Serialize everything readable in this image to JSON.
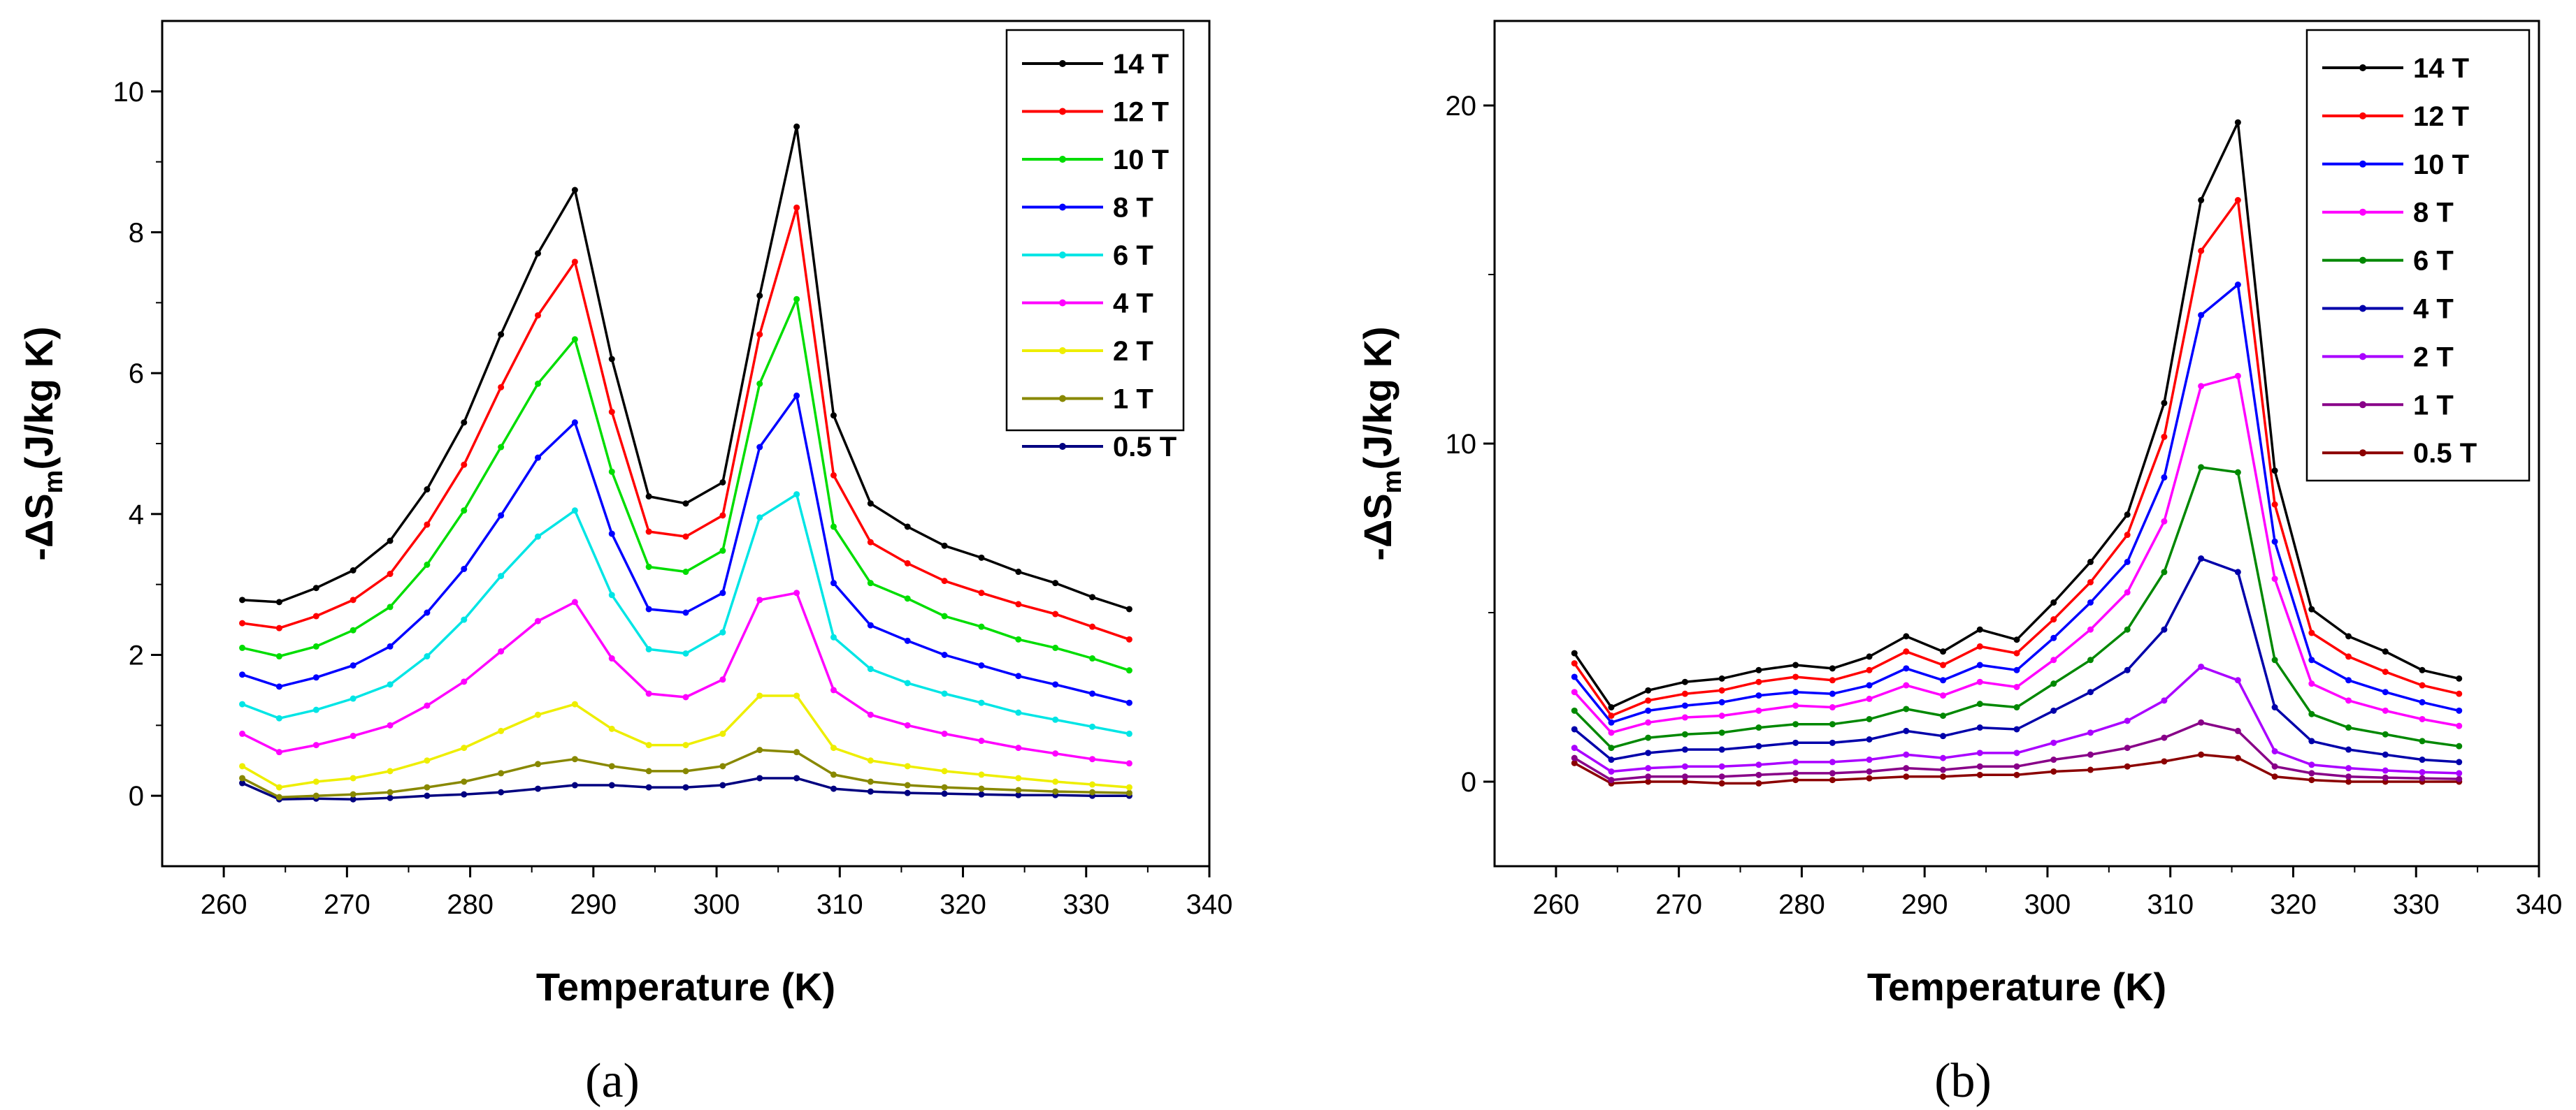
{
  "chart_data": [
    {
      "type": "line",
      "panel_label": "(a)",
      "xlabel": "Temperature (K)",
      "ylabel": "-ΔS",
      "ylabel_sub": "m",
      "ylabel_unit": "(J/kg K)",
      "xlim": [
        255,
        340
      ],
      "ylim": [
        -1,
        11
      ],
      "xticks": [
        260,
        270,
        280,
        290,
        300,
        310,
        320,
        330,
        340
      ],
      "yticks": [
        0,
        2,
        4,
        6,
        8,
        10
      ],
      "legend_position": "top-right",
      "x": [
        261.5,
        264.5,
        267.5,
        270.5,
        273.5,
        276.5,
        279.5,
        282.5,
        285.5,
        288.5,
        291.5,
        294.5,
        297.5,
        300.5,
        303.5,
        306.5,
        309.5,
        312.5,
        315.5,
        318.5,
        321.5,
        324.5,
        327.5,
        330.5,
        333.5
      ],
      "series": [
        {
          "name": "14 T",
          "color": "#000000",
          "values": [
            2.78,
            2.75,
            2.95,
            3.2,
            3.62,
            4.35,
            5.3,
            6.55,
            7.7,
            8.6,
            6.2,
            4.25,
            4.15,
            4.45,
            7.1,
            9.5,
            5.4,
            4.15,
            3.82,
            3.55,
            3.38,
            3.18,
            3.02,
            2.82,
            2.65
          ]
        },
        {
          "name": "12 T",
          "color": "#ff0000",
          "values": [
            2.45,
            2.38,
            2.55,
            2.78,
            3.15,
            3.85,
            4.7,
            5.8,
            6.82,
            7.58,
            5.45,
            3.75,
            3.68,
            3.98,
            6.55,
            8.35,
            4.55,
            3.6,
            3.3,
            3.05,
            2.88,
            2.72,
            2.58,
            2.4,
            2.22
          ]
        },
        {
          "name": "10 T",
          "color": "#00dd00",
          "values": [
            2.1,
            1.98,
            2.12,
            2.35,
            2.68,
            3.28,
            4.05,
            4.95,
            5.85,
            6.48,
            4.6,
            3.25,
            3.18,
            3.48,
            5.85,
            7.05,
            3.82,
            3.02,
            2.8,
            2.55,
            2.4,
            2.22,
            2.1,
            1.95,
            1.78
          ]
        },
        {
          "name": "8 T",
          "color": "#0000ff",
          "values": [
            1.72,
            1.55,
            1.68,
            1.85,
            2.12,
            2.6,
            3.22,
            3.98,
            4.8,
            5.3,
            3.72,
            2.65,
            2.6,
            2.88,
            4.95,
            5.68,
            3.02,
            2.42,
            2.2,
            2.0,
            1.85,
            1.7,
            1.58,
            1.45,
            1.32
          ]
        },
        {
          "name": "6 T",
          "color": "#00e5e5",
          "values": [
            1.3,
            1.1,
            1.22,
            1.38,
            1.58,
            1.98,
            2.5,
            3.12,
            3.68,
            4.05,
            2.85,
            2.08,
            2.02,
            2.32,
            3.95,
            4.28,
            2.25,
            1.8,
            1.6,
            1.45,
            1.32,
            1.18,
            1.08,
            0.98,
            0.88
          ]
        },
        {
          "name": "4 T",
          "color": "#ff00ff",
          "values": [
            0.88,
            0.62,
            0.72,
            0.85,
            1.0,
            1.28,
            1.62,
            2.05,
            2.48,
            2.75,
            1.95,
            1.45,
            1.4,
            1.65,
            2.78,
            2.88,
            1.5,
            1.15,
            1.0,
            0.88,
            0.78,
            0.68,
            0.6,
            0.52,
            0.46
          ]
        },
        {
          "name": "2 T",
          "color": "#eeee00",
          "values": [
            0.42,
            0.12,
            0.2,
            0.25,
            0.35,
            0.5,
            0.68,
            0.92,
            1.15,
            1.3,
            0.95,
            0.72,
            0.72,
            0.88,
            1.42,
            1.42,
            0.68,
            0.5,
            0.42,
            0.35,
            0.3,
            0.25,
            0.2,
            0.16,
            0.12
          ]
        },
        {
          "name": "1 T",
          "color": "#888800",
          "values": [
            0.25,
            -0.02,
            0.0,
            0.02,
            0.05,
            0.12,
            0.2,
            0.32,
            0.45,
            0.52,
            0.42,
            0.35,
            0.35,
            0.42,
            0.65,
            0.62,
            0.3,
            0.2,
            0.15,
            0.12,
            0.1,
            0.08,
            0.06,
            0.05,
            0.04
          ]
        },
        {
          "name": "0.5 T",
          "color": "#000080",
          "values": [
            0.18,
            -0.05,
            -0.04,
            -0.05,
            -0.03,
            0.0,
            0.02,
            0.05,
            0.1,
            0.15,
            0.15,
            0.12,
            0.12,
            0.15,
            0.25,
            0.25,
            0.1,
            0.06,
            0.04,
            0.03,
            0.02,
            0.01,
            0.01,
            0.0,
            0.0
          ]
        }
      ]
    },
    {
      "type": "line",
      "panel_label": "(b)",
      "xlabel": "Temperature (K)",
      "ylabel": "-ΔS",
      "ylabel_sub": "m",
      "ylabel_unit": "(J/kg K)",
      "xlim": [
        255,
        340
      ],
      "ylim": [
        -2.5,
        22.5
      ],
      "xticks": [
        260,
        270,
        280,
        290,
        300,
        310,
        320,
        330,
        340
      ],
      "yticks": [
        0,
        10,
        20
      ],
      "legend_position": "top-right",
      "x": [
        261.5,
        264.5,
        267.5,
        270.5,
        273.5,
        276.5,
        279.5,
        282.5,
        285.5,
        288.5,
        291.5,
        294.5,
        297.5,
        300.5,
        303.5,
        306.5,
        309.5,
        312.5,
        315.5,
        318.5,
        321.5,
        324.5,
        327.5,
        330.5,
        333.5
      ],
      "series": [
        {
          "name": "14 T",
          "color": "#000000",
          "values": [
            3.8,
            2.2,
            2.7,
            2.95,
            3.05,
            3.3,
            3.45,
            3.35,
            3.7,
            4.3,
            3.85,
            4.5,
            4.2,
            5.3,
            6.5,
            7.9,
            11.2,
            17.2,
            19.5,
            9.2,
            5.1,
            4.3,
            3.85,
            3.3,
            3.05
          ]
        },
        {
          "name": "12 T",
          "color": "#ff0000",
          "values": [
            3.5,
            1.95,
            2.4,
            2.6,
            2.7,
            2.95,
            3.1,
            3.0,
            3.3,
            3.85,
            3.45,
            4.0,
            3.8,
            4.8,
            5.9,
            7.3,
            10.2,
            15.7,
            17.2,
            8.2,
            4.4,
            3.7,
            3.25,
            2.85,
            2.6
          ]
        },
        {
          "name": "10 T",
          "color": "#0000ff",
          "values": [
            3.1,
            1.75,
            2.1,
            2.25,
            2.35,
            2.55,
            2.65,
            2.6,
            2.85,
            3.35,
            3.0,
            3.45,
            3.3,
            4.25,
            5.3,
            6.5,
            9.0,
            13.8,
            14.7,
            7.1,
            3.6,
            3.0,
            2.65,
            2.35,
            2.1
          ]
        },
        {
          "name": "8 T",
          "color": "#ff00ff",
          "values": [
            2.65,
            1.45,
            1.75,
            1.9,
            1.95,
            2.1,
            2.25,
            2.2,
            2.45,
            2.85,
            2.55,
            2.95,
            2.8,
            3.6,
            4.5,
            5.6,
            7.7,
            11.7,
            12.0,
            6.0,
            2.9,
            2.4,
            2.1,
            1.85,
            1.65
          ]
        },
        {
          "name": "6 T",
          "color": "#008800",
          "values": [
            2.1,
            1.0,
            1.3,
            1.4,
            1.45,
            1.6,
            1.7,
            1.7,
            1.85,
            2.15,
            1.95,
            2.3,
            2.2,
            2.9,
            3.6,
            4.5,
            6.2,
            9.3,
            9.15,
            3.6,
            2.0,
            1.6,
            1.4,
            1.2,
            1.05
          ]
        },
        {
          "name": "4 T",
          "color": "#0000aa",
          "values": [
            1.55,
            0.65,
            0.85,
            0.95,
            0.95,
            1.05,
            1.15,
            1.15,
            1.25,
            1.5,
            1.35,
            1.6,
            1.55,
            2.1,
            2.65,
            3.3,
            4.5,
            6.6,
            6.2,
            2.2,
            1.2,
            0.95,
            0.8,
            0.65,
            0.58
          ]
        },
        {
          "name": "2 T",
          "color": "#aa00ff",
          "values": [
            1.0,
            0.3,
            0.4,
            0.45,
            0.45,
            0.5,
            0.58,
            0.58,
            0.65,
            0.8,
            0.7,
            0.85,
            0.85,
            1.15,
            1.45,
            1.8,
            2.4,
            3.4,
            3.0,
            0.9,
            0.5,
            0.4,
            0.33,
            0.28,
            0.25
          ]
        },
        {
          "name": "1 T",
          "color": "#880088",
          "values": [
            0.7,
            0.05,
            0.15,
            0.15,
            0.15,
            0.2,
            0.25,
            0.25,
            0.3,
            0.4,
            0.35,
            0.45,
            0.45,
            0.65,
            0.8,
            1.0,
            1.3,
            1.75,
            1.5,
            0.45,
            0.25,
            0.15,
            0.12,
            0.1,
            0.08
          ]
        },
        {
          "name": "0.5 T",
          "color": "#8b0000",
          "values": [
            0.55,
            -0.05,
            0.0,
            0.0,
            -0.05,
            -0.05,
            0.05,
            0.05,
            0.1,
            0.15,
            0.15,
            0.2,
            0.2,
            0.3,
            0.35,
            0.45,
            0.6,
            0.8,
            0.7,
            0.15,
            0.05,
            0.0,
            0.0,
            0.0,
            0.0
          ]
        }
      ]
    }
  ]
}
